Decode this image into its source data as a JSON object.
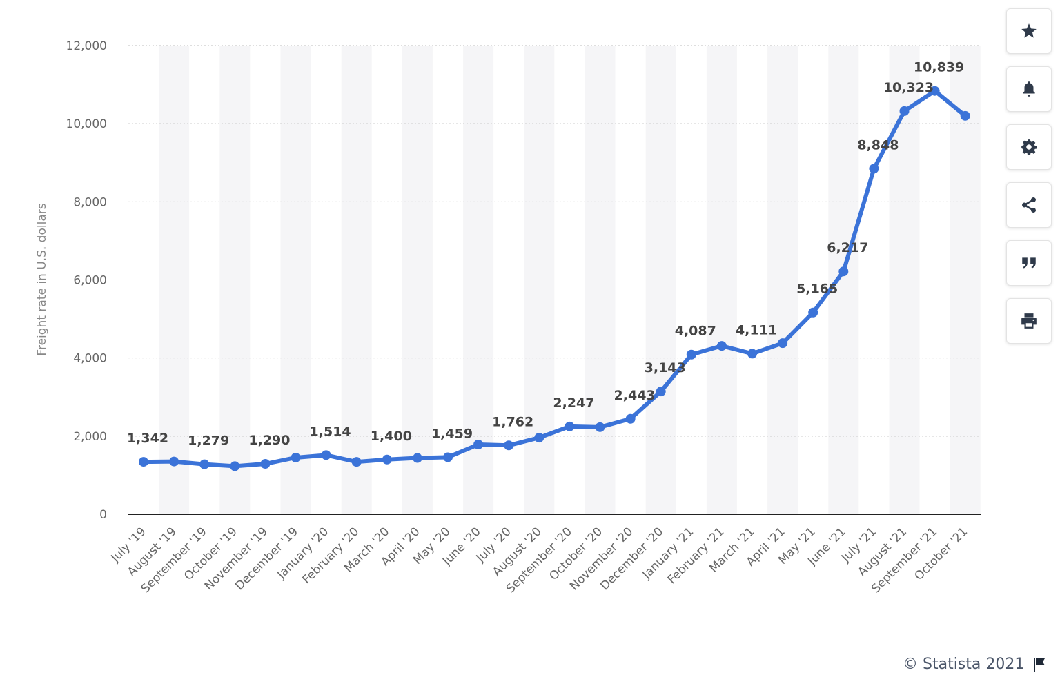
{
  "chart_data": {
    "type": "line",
    "ylabel": "Freight rate in U.S. dollars",
    "xlabel": "",
    "ylim": [
      0,
      12000
    ],
    "yticks": [
      0,
      2000,
      4000,
      6000,
      8000,
      10000,
      12000
    ],
    "ytick_labels": [
      "0",
      "2,000",
      "4,000",
      "6,000",
      "8,000",
      "10,000",
      "12,000"
    ],
    "grid": true,
    "categories": [
      "July '19",
      "August '19",
      "September '19",
      "October '19",
      "November '19",
      "December '19",
      "January '20",
      "February '20",
      "March '20",
      "April '20",
      "May '20",
      "June '20",
      "July '20",
      "August '20",
      "September '20",
      "October '20",
      "November '20",
      "December '20",
      "January '21",
      "February '21",
      "March '21",
      "April '21",
      "May '21",
      "June '21",
      "July '21",
      "August '21",
      "September '21",
      "October '21"
    ],
    "values": [
      1342,
      1350,
      1279,
      1230,
      1290,
      1450,
      1514,
      1340,
      1400,
      1440,
      1459,
      1785,
      1762,
      1960,
      2247,
      2230,
      2443,
      3143,
      4087,
      4310,
      4111,
      4380,
      5165,
      6217,
      8848,
      10323,
      10839,
      10200
    ],
    "data_labels": [
      "1,342",
      "",
      "1,279",
      "",
      "1,290",
      "",
      "1,514",
      "",
      "1,400",
      "",
      "1,459",
      "",
      "1,762",
      "",
      "2,247",
      "",
      "2,443",
      "3,143",
      "4,087",
      "",
      "4,111",
      "",
      "5,165",
      "6,217",
      "8,848",
      "10,323",
      "10,839",
      ""
    ],
    "color": "#3b73d8"
  },
  "toolbar": [
    {
      "name": "favorite-button",
      "icon": "star-icon"
    },
    {
      "name": "notification-button",
      "icon": "bell-icon"
    },
    {
      "name": "settings-button",
      "icon": "gear-icon"
    },
    {
      "name": "share-button",
      "icon": "share-icon"
    },
    {
      "name": "cite-button",
      "icon": "quote-icon"
    },
    {
      "name": "print-button",
      "icon": "print-icon"
    }
  ],
  "credit": {
    "text": "© Statista 2021"
  }
}
